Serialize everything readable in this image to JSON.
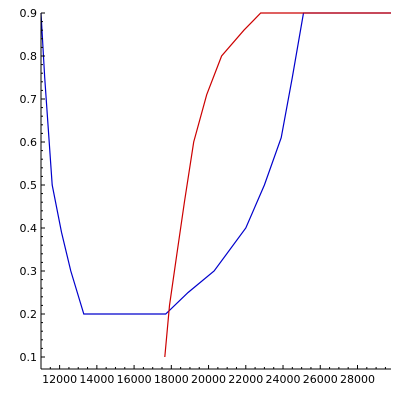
{
  "chart_data": {
    "type": "line",
    "title": "",
    "xlabel": "",
    "ylabel": "",
    "xlim": [
      11000,
      29800
    ],
    "ylim": [
      0.1,
      0.9
    ],
    "grid": false,
    "legend": "none",
    "x_ticks": [
      12000,
      14000,
      16000,
      18000,
      20000,
      22000,
      24000,
      26000,
      28000
    ],
    "x_tick_labels": [
      "12000",
      "14000",
      "16000",
      "18000",
      "20000",
      "22000",
      "24000",
      "26000",
      "28000"
    ],
    "y_ticks": [
      0.1,
      0.2,
      0.3,
      0.4,
      0.5,
      0.6,
      0.7,
      0.8,
      0.9
    ],
    "y_tick_labels": [
      "0.1",
      "0.2",
      "0.3",
      "0.4",
      "0.5",
      "0.6",
      "0.7",
      "0.8",
      "0.9"
    ],
    "series": [
      {
        "color": "#0000cc",
        "points": [
          [
            11000,
            0.9
          ],
          [
            11200,
            0.75
          ],
          [
            11600,
            0.5
          ],
          [
            12100,
            0.39
          ],
          [
            12600,
            0.3
          ],
          [
            13300,
            0.2
          ],
          [
            17700,
            0.2
          ],
          [
            18900,
            0.25
          ],
          [
            20300,
            0.3
          ],
          [
            22000,
            0.4
          ],
          [
            23000,
            0.5
          ],
          [
            23900,
            0.61
          ],
          [
            24500,
            0.75
          ],
          [
            25100,
            0.9
          ],
          [
            29800,
            0.9
          ]
        ]
      },
      {
        "color": "#cc0000",
        "points": [
          [
            17650,
            0.1
          ],
          [
            17900,
            0.22
          ],
          [
            18300,
            0.34
          ],
          [
            18700,
            0.46
          ],
          [
            19200,
            0.6
          ],
          [
            19900,
            0.71
          ],
          [
            20700,
            0.8
          ],
          [
            21900,
            0.86
          ],
          [
            22800,
            0.9
          ],
          [
            29800,
            0.9
          ]
        ]
      }
    ]
  }
}
